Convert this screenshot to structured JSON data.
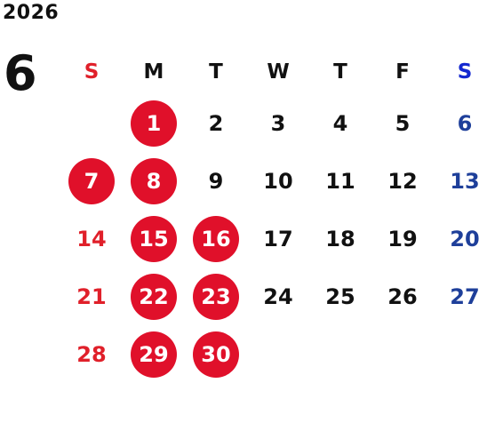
{
  "calendar": {
    "year": "2026",
    "month": "6",
    "weekdays": [
      "S",
      "M",
      "T",
      "W",
      "T",
      "F",
      "S"
    ],
    "colors": {
      "holiday_red": "#e0102a",
      "sunday_red": "#e0202a",
      "saturday_blue": "#1e3f9a",
      "weekday_black": "#111111"
    },
    "weeks": [
      [
        {
          "label": "",
          "style": "empty"
        },
        {
          "label": "1",
          "style": "circle"
        },
        {
          "label": "2",
          "style": "black"
        },
        {
          "label": "3",
          "style": "black"
        },
        {
          "label": "4",
          "style": "black"
        },
        {
          "label": "5",
          "style": "black"
        },
        {
          "label": "6",
          "style": "blue"
        }
      ],
      [
        {
          "label": "7",
          "style": "circle"
        },
        {
          "label": "8",
          "style": "circle"
        },
        {
          "label": "9",
          "style": "black"
        },
        {
          "label": "10",
          "style": "black"
        },
        {
          "label": "11",
          "style": "black"
        },
        {
          "label": "12",
          "style": "black"
        },
        {
          "label": "13",
          "style": "blue"
        }
      ],
      [
        {
          "label": "14",
          "style": "red"
        },
        {
          "label": "15",
          "style": "circle"
        },
        {
          "label": "16",
          "style": "circle"
        },
        {
          "label": "17",
          "style": "black"
        },
        {
          "label": "18",
          "style": "black"
        },
        {
          "label": "19",
          "style": "black"
        },
        {
          "label": "20",
          "style": "blue"
        }
      ],
      [
        {
          "label": "21",
          "style": "red"
        },
        {
          "label": "22",
          "style": "circle"
        },
        {
          "label": "23",
          "style": "circle"
        },
        {
          "label": "24",
          "style": "black"
        },
        {
          "label": "25",
          "style": "black"
        },
        {
          "label": "26",
          "style": "black"
        },
        {
          "label": "27",
          "style": "blue"
        }
      ],
      [
        {
          "label": "28",
          "style": "red"
        },
        {
          "label": "29",
          "style": "circle"
        },
        {
          "label": "30",
          "style": "circle"
        },
        {
          "label": "",
          "style": "empty"
        },
        {
          "label": "",
          "style": "empty"
        },
        {
          "label": "",
          "style": "empty"
        },
        {
          "label": "",
          "style": "empty"
        }
      ]
    ]
  }
}
